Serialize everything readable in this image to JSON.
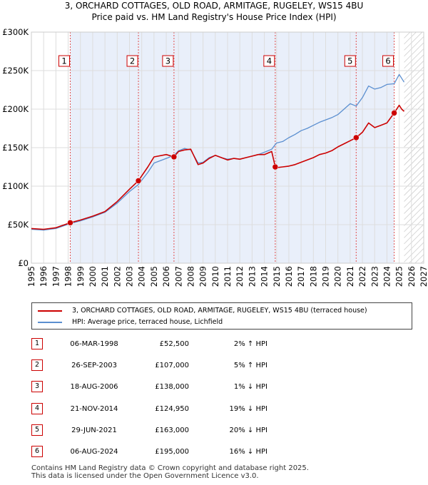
{
  "title_line1": "3, ORCHARD COTTAGES, OLD ROAD, ARMITAGE, RUGELEY, WS15 4BU",
  "title_line2": "Price paid vs. HM Land Registry's House Price Index (HPI)",
  "chart_data": {
    "type": "line",
    "title": "3, ORCHARD COTTAGES, OLD ROAD, ARMITAGE, RUGELEY, WS15 4BU — Price paid vs. HM Land Registry's House Price Index (HPI)",
    "xlim": [
      1995,
      2027
    ],
    "ylim": [
      0,
      300000
    ],
    "x_ticks": [
      "1995",
      "1996",
      "1997",
      "1998",
      "1999",
      "2000",
      "2001",
      "2002",
      "2003",
      "2004",
      "2005",
      "2006",
      "2007",
      "2008",
      "2009",
      "2010",
      "2011",
      "2012",
      "2013",
      "2014",
      "2015",
      "2016",
      "2017",
      "2018",
      "2019",
      "2020",
      "2021",
      "2022",
      "2023",
      "2024",
      "2025",
      "2026",
      "2027"
    ],
    "y_ticks": [
      {
        "value": 0,
        "label": "£0"
      },
      {
        "value": 50000,
        "label": "£50K"
      },
      {
        "value": 100000,
        "label": "£100K"
      },
      {
        "value": 150000,
        "label": "£150K"
      },
      {
        "value": 200000,
        "label": "£200K"
      },
      {
        "value": 250000,
        "label": "£250K"
      },
      {
        "value": 300000,
        "label": "£300K"
      }
    ],
    "projection_start": 2025.4,
    "series": [
      {
        "name": "3, ORCHARD COTTAGES, OLD ROAD, ARMITAGE, RUGELEY, WS15 4BU (terraced house)",
        "color": "#cc0000",
        "x": [
          1995.0,
          1996.0,
          1997.0,
          1998.17,
          1999.0,
          2000.0,
          2001.0,
          2002.0,
          2003.0,
          2003.73,
          2004.5,
          2005.0,
          2006.0,
          2006.63,
          2007.0,
          2007.5,
          2008.0,
          2008.6,
          2009.0,
          2009.5,
          2010.0,
          2010.5,
          2011.0,
          2011.5,
          2012.0,
          2012.5,
          2013.0,
          2013.5,
          2014.0,
          2014.6,
          2014.89,
          2015.0,
          2015.5,
          2016.0,
          2016.5,
          2017.0,
          2017.5,
          2018.0,
          2018.5,
          2019.0,
          2019.5,
          2020.0,
          2020.5,
          2021.0,
          2021.49,
          2022.0,
          2022.5,
          2023.0,
          2023.5,
          2024.0,
          2024.59,
          2025.0,
          2025.2,
          2025.4
        ],
        "y": [
          45000,
          44000,
          46000,
          52500,
          56000,
          61000,
          67000,
          80000,
          96000,
          107000,
          125000,
          138000,
          141000,
          138000,
          145000,
          147000,
          148000,
          128000,
          130000,
          136000,
          140000,
          137000,
          134000,
          136000,
          135000,
          137000,
          139000,
          141000,
          141000,
          145000,
          124950,
          124000,
          125000,
          126000,
          128000,
          131000,
          134000,
          137000,
          141000,
          143000,
          146000,
          151000,
          155000,
          159000,
          163000,
          170000,
          182000,
          176000,
          179000,
          182000,
          195000,
          205000,
          200000,
          197000
        ]
      },
      {
        "name": "HPI: Average price, terraced house, Lichfield",
        "color": "#5b8fd0",
        "x": [
          1995.0,
          1996.0,
          1997.0,
          1998.17,
          1999.0,
          2000.0,
          2001.0,
          2002.0,
          2003.0,
          2003.73,
          2004.5,
          2005.0,
          2006.0,
          2006.63,
          2007.0,
          2007.5,
          2008.0,
          2008.6,
          2009.0,
          2009.5,
          2010.0,
          2010.5,
          2011.0,
          2011.5,
          2012.0,
          2012.5,
          2013.0,
          2013.5,
          2014.0,
          2014.6,
          2014.89,
          2015.0,
          2015.5,
          2016.0,
          2016.5,
          2017.0,
          2017.5,
          2018.0,
          2018.5,
          2019.0,
          2019.5,
          2020.0,
          2020.5,
          2021.0,
          2021.49,
          2022.0,
          2022.5,
          2023.0,
          2023.5,
          2024.0,
          2024.59,
          2025.0,
          2025.2,
          2025.4
        ],
        "y": [
          44000,
          43000,
          45000,
          51500,
          55000,
          60000,
          66000,
          78000,
          93000,
          102000,
          118000,
          130000,
          136000,
          140000,
          146000,
          149000,
          147000,
          130000,
          131000,
          137000,
          140000,
          137000,
          135000,
          136000,
          135000,
          137000,
          139000,
          141000,
          144000,
          148000,
          154000,
          156000,
          158000,
          163000,
          167000,
          172000,
          175000,
          179000,
          183000,
          186000,
          189000,
          193000,
          200000,
          207000,
          204000,
          215000,
          230000,
          226000,
          228000,
          232000,
          233000,
          245000,
          240000,
          235000
        ]
      }
    ],
    "sales": [
      {
        "label": "1",
        "x": 1998.17,
        "y": 52500
      },
      {
        "label": "2",
        "x": 2003.73,
        "y": 107000
      },
      {
        "label": "3",
        "x": 2006.63,
        "y": 138000
      },
      {
        "label": "4",
        "x": 2014.89,
        "y": 124950
      },
      {
        "label": "5",
        "x": 2021.49,
        "y": 163000
      },
      {
        "label": "6",
        "x": 2024.59,
        "y": 195000
      }
    ]
  },
  "legend": {
    "property": "3, ORCHARD COTTAGES, OLD ROAD, ARMITAGE, RUGELEY, WS15 4BU (terraced house)",
    "hpi": "HPI: Average price, terraced house, Lichfield"
  },
  "transactions": [
    {
      "num": "1",
      "date": "06-MAR-1998",
      "price": "£52,500",
      "hpi": "2% ↑ HPI"
    },
    {
      "num": "2",
      "date": "26-SEP-2003",
      "price": "£107,000",
      "hpi": "5% ↑ HPI"
    },
    {
      "num": "3",
      "date": "18-AUG-2006",
      "price": "£138,000",
      "hpi": "1% ↓ HPI"
    },
    {
      "num": "4",
      "date": "21-NOV-2014",
      "price": "£124,950",
      "hpi": "19% ↓ HPI"
    },
    {
      "num": "5",
      "date": "29-JUN-2021",
      "price": "£163,000",
      "hpi": "20% ↓ HPI"
    },
    {
      "num": "6",
      "date": "06-AUG-2024",
      "price": "£195,000",
      "hpi": "16% ↓ HPI"
    }
  ],
  "footer": {
    "line1": "Contains HM Land Registry data © Crown copyright and database right 2025.",
    "line2": "This data is licensed under the Open Government Licence v3.0."
  }
}
